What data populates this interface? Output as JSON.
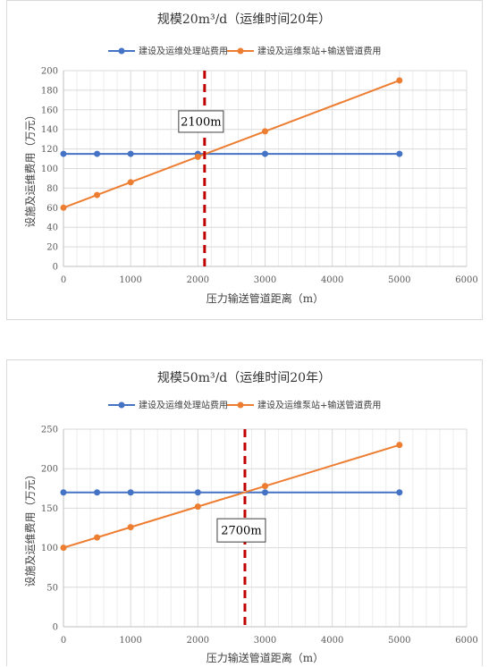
{
  "colors": {
    "facility": "#4472c4",
    "pump": "#ed7d31",
    "crossover": "#c00000",
    "grid": "#d9d9d9",
    "axis": "#bfbfbf"
  },
  "chart_data": [
    {
      "type": "line",
      "title": "规模20m³/d（运维时间20年）",
      "xlabel": "压力输送管道距离（m）",
      "ylabel": "设施及运维费用（万元）",
      "xlim": [
        0,
        6000
      ],
      "ylim": [
        0,
        200
      ],
      "xticks": [
        0,
        1000,
        2000,
        3000,
        4000,
        5000,
        6000
      ],
      "yticks": [
        0,
        20,
        40,
        60,
        80,
        100,
        120,
        140,
        160,
        180,
        200
      ],
      "grid": true,
      "legend_position": "top",
      "series": [
        {
          "name": "建设及运维处理站费用",
          "x": [
            0,
            500,
            1000,
            2000,
            3000,
            5000
          ],
          "y": [
            115,
            115,
            115,
            115,
            115,
            115
          ]
        },
        {
          "name": "建设及运维泵站+输送管道费用",
          "x": [
            0,
            500,
            1000,
            2000,
            3000,
            5000
          ],
          "y": [
            60,
            73,
            86,
            112,
            138,
            190
          ]
        }
      ],
      "crossover": {
        "x": 2100,
        "label": "2100m"
      }
    },
    {
      "type": "line",
      "title": "规模50m³/d（运维时间20年）",
      "xlabel": "压力输送管道距离（m）",
      "ylabel": "设施及运维费用（万元）",
      "xlim": [
        0,
        6000
      ],
      "ylim": [
        0,
        250
      ],
      "xticks": [
        0,
        1000,
        2000,
        3000,
        4000,
        5000,
        6000
      ],
      "yticks": [
        0,
        50,
        100,
        150,
        200,
        250
      ],
      "grid": true,
      "legend_position": "top",
      "series": [
        {
          "name": "建设及运维处理站费用",
          "x": [
            0,
            500,
            1000,
            2000,
            3000,
            5000
          ],
          "y": [
            170,
            170,
            170,
            170,
            170,
            170
          ]
        },
        {
          "name": "建设及运维泵站+输送管道费用",
          "x": [
            0,
            500,
            1000,
            2000,
            3000,
            5000
          ],
          "y": [
            100,
            113,
            126,
            152,
            178,
            230
          ]
        }
      ],
      "crossover": {
        "x": 2700,
        "label": "2700m"
      }
    }
  ]
}
